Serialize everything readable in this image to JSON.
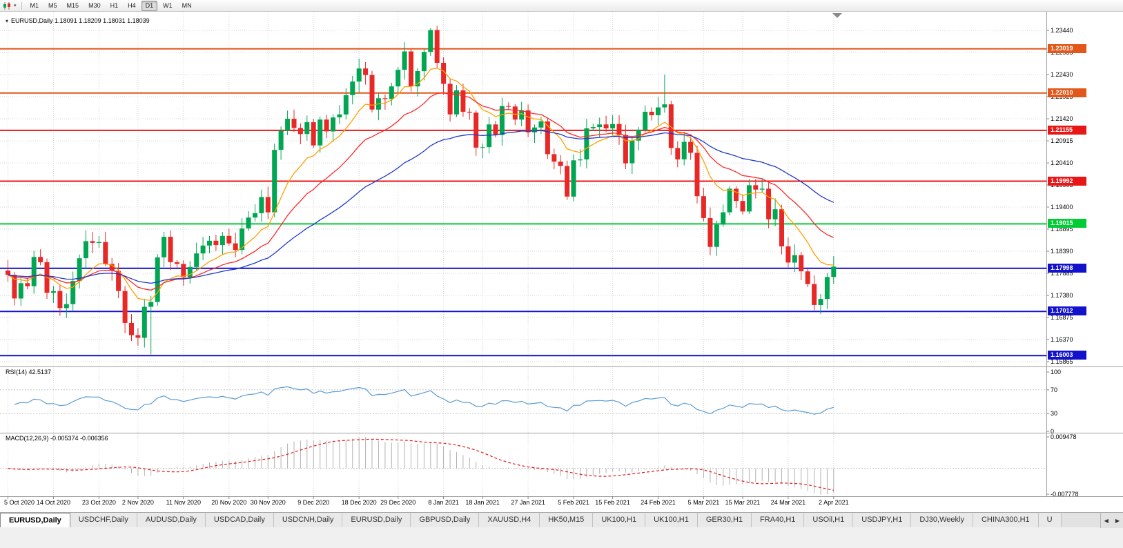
{
  "icons": {
    "chart_type": "candlestick-chart-icon",
    "caret_glyph": "▾",
    "header_marker_glyph": "▾",
    "tab_scroll_left_glyph": "◀",
    "tab_scroll_right_glyph": "▶"
  },
  "toolbar": {
    "timeframes": [
      {
        "label": "M1",
        "active": false
      },
      {
        "label": "M5",
        "active": false
      },
      {
        "label": "M15",
        "active": false
      },
      {
        "label": "M30",
        "active": false
      },
      {
        "label": "H1",
        "active": false
      },
      {
        "label": "H4",
        "active": false
      },
      {
        "label": "D1",
        "active": true
      },
      {
        "label": "W1",
        "active": false
      },
      {
        "label": "MN",
        "active": false
      }
    ]
  },
  "chart_header": {
    "symbol_label": "EURUSD,Daily",
    "ohlc": "1.18091 1.18209 1.18031 1.18039",
    "open": "1.18091",
    "high": "1.18209",
    "low": "1.18031",
    "close": "1.18039"
  },
  "price_scale": [
    "1.23440",
    "1.22935",
    "1.22430",
    "1.21925",
    "1.21420",
    "1.20915",
    "1.20410",
    "1.19905",
    "1.19400",
    "1.18895",
    "1.18390",
    "1.17885",
    "1.17380",
    "1.16875",
    "1.16370",
    "1.15865"
  ],
  "levels": [
    {
      "label": "1.23019",
      "price": 1.23019,
      "color": "#e2571a"
    },
    {
      "label": "1.22010",
      "price": 1.2201,
      "color": "#e2571a"
    },
    {
      "label": "1.21155",
      "price": 1.21155,
      "color": "#e81717"
    },
    {
      "label": "1.19992",
      "price": 1.19992,
      "color": "#e81717"
    },
    {
      "label": "1.19015",
      "price": 1.19015,
      "color": "#00cc33"
    },
    {
      "label": "1.17998",
      "price": 1.17998,
      "color": "#1212cc"
    },
    {
      "label": "1.17012",
      "price": 1.17012,
      "color": "#1212cc"
    },
    {
      "label": "1.16003",
      "price": 1.16003,
      "color": "#1212cc"
    }
  ],
  "rsi_panel": {
    "label": "RSI(14) 42.5137",
    "indicator": "RSI",
    "period": 14,
    "value": "42.5137",
    "scale": [
      "100",
      "70",
      "30",
      "0"
    ],
    "upper_level": 70,
    "lower_level": 30,
    "line_color": "#5a9bd4"
  },
  "macd_panel": {
    "label": "MACD(12,26,9) -0.005374 -0.006356",
    "fast": 12,
    "slow": 26,
    "signal": 9,
    "value_macd": "-0.005374",
    "value_signal": "-0.006356",
    "scale_max": "0.009478",
    "scale_min": "-0.007778",
    "histogram_color": "#b0b0b0",
    "signal_color": "#e81717"
  },
  "date_axis": {
    "labels": [
      {
        "text": "5 Oct 2020",
        "index": 0
      },
      {
        "text": "14 Oct 2020",
        "index": 7
      },
      {
        "text": "23 Oct 2020",
        "index": 14
      },
      {
        "text": "2 Nov 2020",
        "index": 20
      },
      {
        "text": "11 Nov 2020",
        "index": 27
      },
      {
        "text": "20 Nov 2020",
        "index": 34
      },
      {
        "text": "30 Nov 2020",
        "index": 40
      },
      {
        "text": "9 Dec 2020",
        "index": 47
      },
      {
        "text": "18 Dec 2020",
        "index": 54
      },
      {
        "text": "29 Dec 2020",
        "index": 60
      },
      {
        "text": "8 Jan 2021",
        "index": 67
      },
      {
        "text": "18 Jan 2021",
        "index": 73
      },
      {
        "text": "27 Jan 2021",
        "index": 80
      },
      {
        "text": "5 Feb 2021",
        "index": 87
      },
      {
        "text": "15 Feb 2021",
        "index": 93
      },
      {
        "text": "24 Feb 2021",
        "index": 100
      },
      {
        "text": "5 Mar 2021",
        "index": 107
      },
      {
        "text": "15 Mar 2021",
        "index": 113
      },
      {
        "text": "24 Mar 2021",
        "index": 120
      },
      {
        "text": "2 Apr 2021",
        "index": 127
      }
    ]
  },
  "tabs": {
    "items": [
      {
        "label": "EURUSD,Daily",
        "active": true
      },
      {
        "label": "USDCHF,Daily",
        "active": false
      },
      {
        "label": "AUDUSD,Daily",
        "active": false
      },
      {
        "label": "USDCAD,Daily",
        "active": false
      },
      {
        "label": "USDCNH,Daily",
        "active": false
      },
      {
        "label": "EURUSD,Daily",
        "active": false
      },
      {
        "label": "GBPUSD,Daily",
        "active": false
      },
      {
        "label": "XAUUSD,H4",
        "active": false
      },
      {
        "label": "HK50,M15",
        "active": false
      },
      {
        "label": "UK100,H1",
        "active": false
      },
      {
        "label": "UK100,H1",
        "active": false
      },
      {
        "label": "GER30,H1",
        "active": false
      },
      {
        "label": "FRA40,H1",
        "active": false
      },
      {
        "label": "USOil,H1",
        "active": false
      },
      {
        "label": "USDJPY,H1",
        "active": false
      },
      {
        "label": "DJ30,Weekly",
        "active": false
      },
      {
        "label": "CHINA300,H1",
        "active": false
      }
    ],
    "overflow_label": "U"
  },
  "chart_data": {
    "type": "candlestick",
    "symbol": "EURUSD",
    "timeframe": "Daily",
    "title": "EURUSD,Daily",
    "ohlc_current": {
      "open": 1.18091,
      "high": 1.18209,
      "low": 1.18031,
      "close": 1.18039
    },
    "ylim": [
      1.15754,
      1.23868
    ],
    "first_open": 1.1795,
    "closes": [
      1.1785,
      1.1731,
      1.1766,
      1.1759,
      1.1826,
      1.1814,
      1.1744,
      1.1748,
      1.1709,
      1.1718,
      1.1771,
      1.1823,
      1.1862,
      1.1858,
      1.186,
      1.181,
      1.1794,
      1.1748,
      1.1675,
      1.1647,
      1.1641,
      1.1712,
      1.1723,
      1.1825,
      1.1872,
      1.1814,
      1.181,
      1.1779,
      1.1803,
      1.1834,
      1.1852,
      1.1863,
      1.1853,
      1.1874,
      1.1857,
      1.1842,
      1.1891,
      1.1916,
      1.1926,
      1.1963,
      1.1928,
      1.2071,
      1.2115,
      1.2142,
      1.2121,
      1.2107,
      1.2134,
      1.2081,
      1.214,
      1.2113,
      1.2145,
      1.2152,
      1.2196,
      1.2227,
      1.2257,
      1.2242,
      1.2163,
      1.2189,
      1.2187,
      1.2216,
      1.2254,
      1.2296,
      1.2216,
      1.2251,
      1.2295,
      1.2345,
      1.227,
      1.2222,
      1.2152,
      1.2207,
      1.2158,
      1.2156,
      1.2076,
      1.2077,
      1.2129,
      1.2105,
      1.2171,
      1.217,
      1.214,
      1.2161,
      1.2111,
      1.2122,
      1.2136,
      1.2061,
      1.2044,
      1.2034,
      1.1964,
      1.2047,
      1.2049,
      1.212,
      1.2123,
      1.2129,
      1.212,
      1.213,
      1.2105,
      1.204,
      1.2092,
      1.2117,
      1.2158,
      1.215,
      1.2168,
      1.2175,
      1.2075,
      1.2049,
      1.2089,
      1.2064,
      1.1965,
      1.1915,
      1.1849,
      1.19,
      1.1928,
      1.1982,
      1.1954,
      1.193,
      1.199,
      1.198,
      1.1982,
      1.1912,
      1.1935,
      1.185,
      1.1813,
      1.183,
      1.1793,
      1.1764,
      1.1716,
      1.173,
      1.178,
      1.18039
    ],
    "high_overrides": {
      "65": 1.2349,
      "101": 1.2243
    },
    "low_overrides": {
      "22": 1.1603,
      "124": 1.1704
    },
    "up_color": "#00a651",
    "down_color": "#e82727",
    "moving_averages": [
      {
        "name": "MA-fast",
        "period": 10,
        "color": "#ffa000"
      },
      {
        "name": "MA-mid",
        "period": 21,
        "color": "#ff2626"
      },
      {
        "name": "MA-slow",
        "period": 45,
        "color": "#2038c8"
      }
    ],
    "indicators": [
      {
        "type": "RSI",
        "period": 14,
        "current": 42.5137
      },
      {
        "type": "MACD",
        "fast": 12,
        "slow": 26,
        "signal": 9,
        "current_macd": -0.005374,
        "current_signal": -0.006356
      }
    ]
  }
}
